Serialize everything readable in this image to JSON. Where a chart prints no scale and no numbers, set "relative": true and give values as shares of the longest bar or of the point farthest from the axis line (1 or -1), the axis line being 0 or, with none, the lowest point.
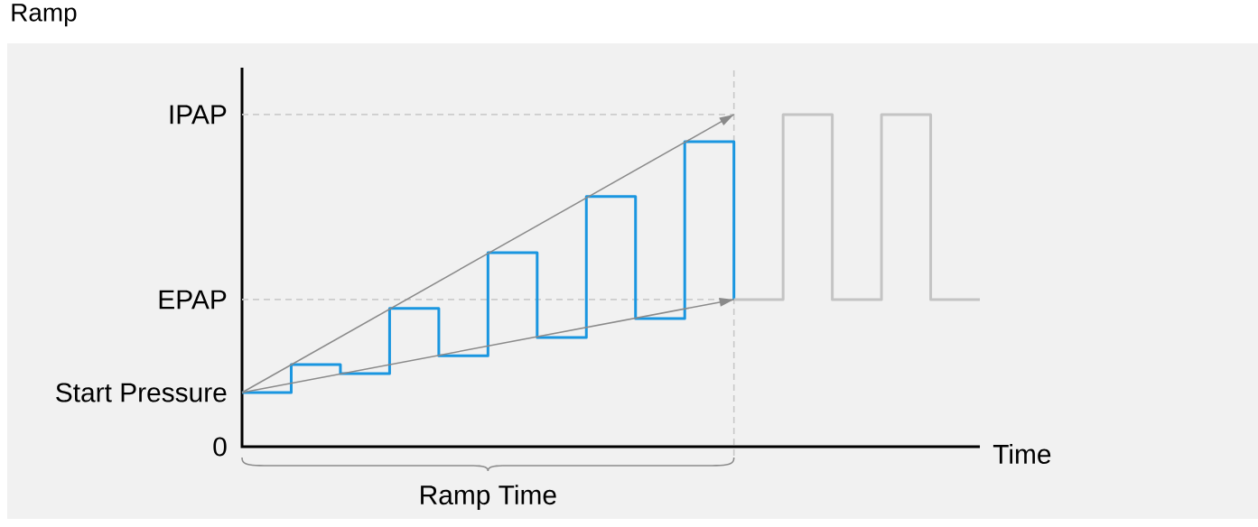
{
  "chart_data": {
    "type": "step",
    "title": "Ramp",
    "xlabel": "Time",
    "categories": [
      null,
      null,
      null,
      null,
      null,
      null,
      null,
      null,
      null,
      null,
      null,
      null,
      null,
      null,
      null,
      null
    ],
    "relative": true,
    "series": [
      {
        "color": "#1a96e0",
        "values": [
          0.163,
          0.247,
          0.22,
          0.416,
          0.274,
          0.584,
          0.329,
          0.753,
          0.386,
          0.918,
          0.443,
          null,
          null,
          null,
          null,
          null
        ]
      },
      {
        "color": "#c4c4c4",
        "values": [
          null,
          null,
          null,
          null,
          null,
          null,
          null,
          null,
          null,
          null,
          0.443,
          1.0,
          0.443,
          1.0,
          0.443,
          0.443
        ]
      },
      {
        "type": "line",
        "color": "#8a8a8a",
        "values": [
          0.163,
          null,
          null,
          null,
          null,
          null,
          null,
          null,
          null,
          null,
          1.0,
          null,
          null,
          null,
          null,
          null
        ]
      },
      {
        "type": "line",
        "color": "#8a8a8a",
        "values": [
          0.163,
          null,
          null,
          null,
          null,
          null,
          null,
          null,
          null,
          null,
          0.443,
          null,
          null,
          null,
          null,
          null
        ]
      }
    ],
    "ref_lines": [
      {
        "axis": "y",
        "value": 1.0,
        "label": "IPAP",
        "color": "#cccccc",
        "line_style": "dashed"
      },
      {
        "axis": "y",
        "value": 0.443,
        "label": "EPAP",
        "color": "#cccccc",
        "line_style": "dashed"
      }
    ],
    "annotations": [
      "Start Pressure",
      "0",
      "Ramp Time"
    ]
  }
}
